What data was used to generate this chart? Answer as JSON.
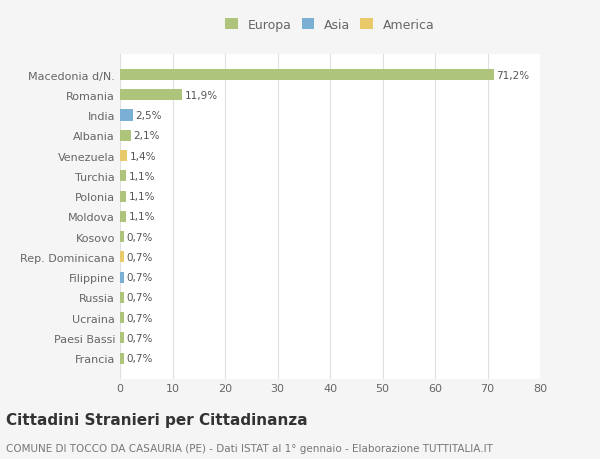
{
  "categories": [
    "Francia",
    "Paesi Bassi",
    "Ucraina",
    "Russia",
    "Filippine",
    "Rep. Dominicana",
    "Kosovo",
    "Moldova",
    "Polonia",
    "Turchia",
    "Venezuela",
    "Albania",
    "India",
    "Romania",
    "Macedonia d/N."
  ],
  "values": [
    0.7,
    0.7,
    0.7,
    0.7,
    0.7,
    0.7,
    0.7,
    1.1,
    1.1,
    1.1,
    1.4,
    2.1,
    2.5,
    11.9,
    71.2
  ],
  "colors": [
    "#adc47a",
    "#adc47a",
    "#adc47a",
    "#adc47a",
    "#7bafd4",
    "#e8ca6a",
    "#adc47a",
    "#adc47a",
    "#adc47a",
    "#adc47a",
    "#e8ca6a",
    "#adc47a",
    "#7bafd4",
    "#adc47a",
    "#adc47a"
  ],
  "labels": [
    "0,7%",
    "0,7%",
    "0,7%",
    "0,7%",
    "0,7%",
    "0,7%",
    "0,7%",
    "1,1%",
    "1,1%",
    "1,1%",
    "1,4%",
    "2,1%",
    "2,5%",
    "11,9%",
    "71,2%"
  ],
  "legend_labels": [
    "Europa",
    "Asia",
    "America"
  ],
  "legend_colors": [
    "#adc47a",
    "#7bafd4",
    "#e8ca6a"
  ],
  "xlim": [
    0,
    80
  ],
  "xticks": [
    0,
    10,
    20,
    30,
    40,
    50,
    60,
    70,
    80
  ],
  "title": "Cittadini Stranieri per Cittadinanza",
  "subtitle": "COMUNE DI TOCCO DA CASAURIA (PE) - Dati ISTAT al 1° gennaio - Elaborazione TUTTITALIA.IT",
  "background_color": "#f5f5f5",
  "bar_background": "#ffffff",
  "grid_color": "#e0e0e0",
  "bar_height": 0.55,
  "label_fontsize": 7.5,
  "tick_fontsize": 8,
  "title_fontsize": 11,
  "subtitle_fontsize": 7.5,
  "legend_fontsize": 9
}
